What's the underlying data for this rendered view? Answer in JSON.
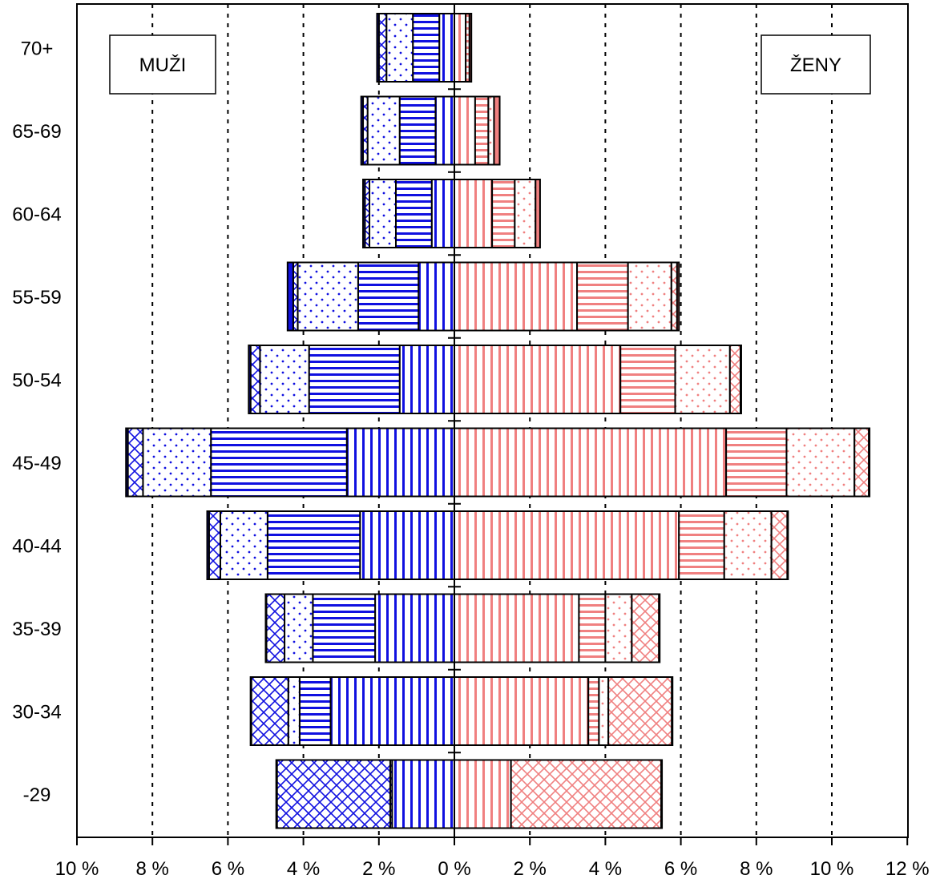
{
  "chart_data": {
    "type": "bar",
    "subtype": "population-pyramid-stacked",
    "title": "",
    "xlabel": "",
    "ylabel": "",
    "xlim_left": [
      0,
      10
    ],
    "xlim_right": [
      0,
      12
    ],
    "x_ticks_left": [
      "10 %",
      "8 %",
      "6 %",
      "4 %",
      "2 %",
      "0 %"
    ],
    "x_ticks_right": [
      "2 %",
      "4 %",
      "6 %",
      "8 %",
      "10 %",
      "12 %"
    ],
    "grid": "vertical-dotted",
    "categories": [
      "70+",
      "65-69",
      "60-64",
      "55-59",
      "50-54",
      "45-49",
      "40-44",
      "35-39",
      "30-34",
      "-29"
    ],
    "segment_patterns": [
      "vertical",
      "horizontal",
      "dots",
      "crosshatch",
      "solid"
    ],
    "panels": [
      {
        "name": "MUŽI",
        "side": "left",
        "color": "#1010e0",
        "segments": [
          [
            0.4,
            0.7,
            0.7,
            0.2,
            0.05
          ],
          [
            0.5,
            0.95,
            0.85,
            0.12,
            0.05
          ],
          [
            0.6,
            0.95,
            0.7,
            0.12,
            0.05
          ],
          [
            0.95,
            1.6,
            1.6,
            0.12,
            0.15
          ],
          [
            1.45,
            2.4,
            1.3,
            0.25,
            0.05
          ],
          [
            2.85,
            3.6,
            1.8,
            0.4,
            0.05
          ],
          [
            2.5,
            2.45,
            1.25,
            0.3,
            0.05
          ],
          [
            2.1,
            1.65,
            0.75,
            0.48,
            0.02
          ],
          [
            3.28,
            0.82,
            0.3,
            0.98,
            0.02
          ],
          [
            1.65,
            0.05,
            0.0,
            3.0,
            0.02
          ]
        ]
      },
      {
        "name": "ŽENY",
        "side": "right",
        "color": "#f08080",
        "segments": [
          [
            0.3,
            0.1,
            0.0,
            0.0,
            0.05
          ],
          [
            0.55,
            0.35,
            0.15,
            0.0,
            0.15
          ],
          [
            1.0,
            0.6,
            0.55,
            0.0,
            0.12
          ],
          [
            3.25,
            1.35,
            1.15,
            0.15,
            0.05
          ],
          [
            4.4,
            1.45,
            1.45,
            0.28,
            0.02
          ],
          [
            7.2,
            1.6,
            1.8,
            0.38,
            0.02
          ],
          [
            5.95,
            1.2,
            1.25,
            0.42,
            0.02
          ],
          [
            3.3,
            0.7,
            0.7,
            0.72,
            0.02
          ],
          [
            3.55,
            0.28,
            0.25,
            1.68,
            0.02
          ],
          [
            1.5,
            0.0,
            0.0,
            3.98,
            0.02
          ]
        ]
      }
    ]
  }
}
